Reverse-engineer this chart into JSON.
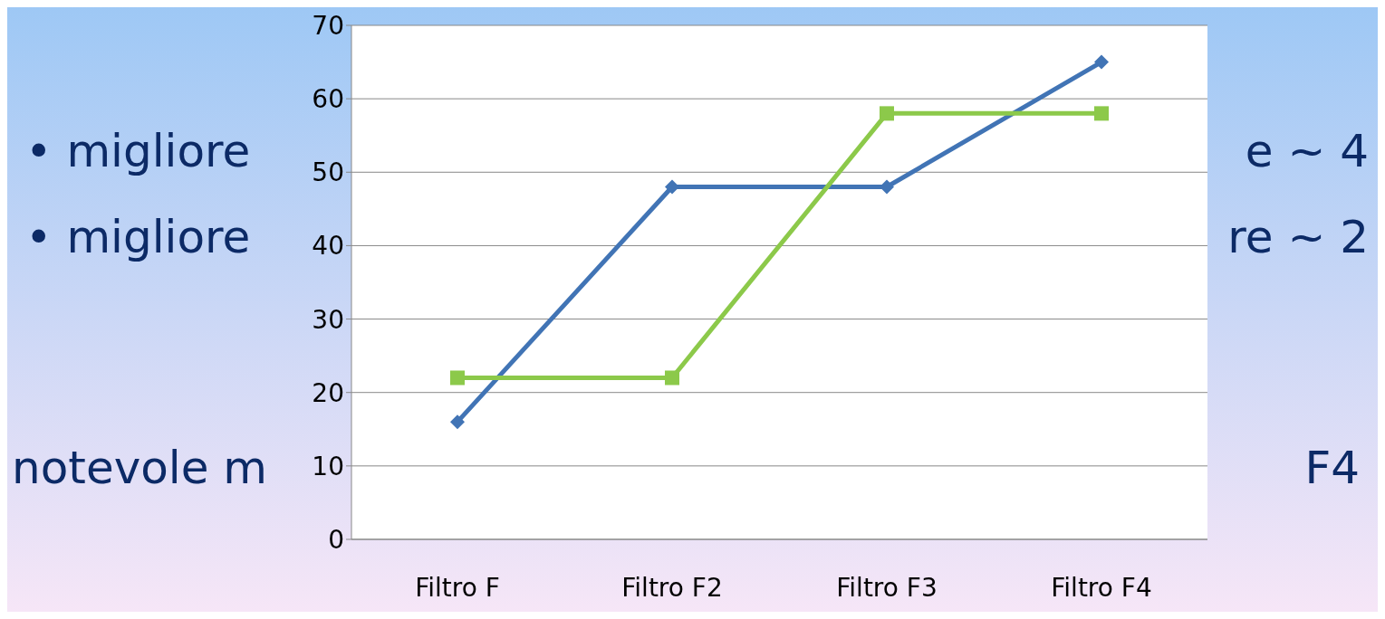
{
  "chart_data": {
    "type": "line",
    "categories": [
      "Filtro F",
      "Filtro F2",
      "Filtro F3",
      "Filtro F4"
    ],
    "series": [
      {
        "color": "#4174b5",
        "values": [
          16,
          48,
          48,
          65
        ],
        "marker": "diamond"
      },
      {
        "color": "#8cc94a",
        "values": [
          22,
          22,
          58,
          58
        ],
        "marker": "square"
      }
    ],
    "ylim": [
      0,
      70
    ],
    "yticks": [
      0,
      10,
      20,
      30,
      40,
      50,
      60,
      70
    ],
    "grid": "y",
    "annotations": [
      "• migliore",
      "e ~ 4",
      "• migliore",
      "re ~ 2",
      "notevole m",
      "F4"
    ]
  }
}
